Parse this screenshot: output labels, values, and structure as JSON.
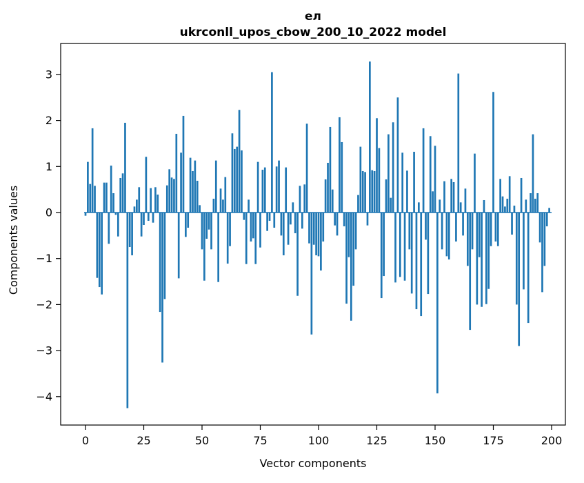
{
  "title": {
    "line1": "ел",
    "line2": "ukrconll_upos_cbow_200_10_2022 model"
  },
  "chart_data": {
    "type": "bar",
    "title": "ел",
    "subtitle": "ukrconll_upos_cbow_200_10_2022 model",
    "xlabel": "Vector components",
    "ylabel": "Components values",
    "bar_color": "#1f77b4",
    "axis_color": "#000000",
    "grid": false,
    "legend": false,
    "n_bars": 200,
    "xlim": [
      -11,
      206
    ],
    "ylim": [
      -4.6,
      3.67
    ],
    "x_tick_values": [
      0,
      25,
      50,
      75,
      100,
      125,
      150,
      175,
      200
    ],
    "x_tick_labels": [
      "0",
      "25",
      "50",
      "75",
      "100",
      "125",
      "150",
      "175",
      "200"
    ],
    "y_tick_values": [
      3,
      2,
      1,
      0,
      -1,
      -2,
      -3,
      -4
    ],
    "y_tick_labels": [
      "3",
      "2",
      "1",
      "0",
      "−1",
      "−2",
      "−3",
      "−4"
    ],
    "values": [
      -0.07,
      1.1,
      0.62,
      1.83,
      0.58,
      -1.42,
      -1.62,
      -1.78,
      0.65,
      0.65,
      -0.68,
      1.02,
      0.42,
      -0.05,
      -0.52,
      0.75,
      0.85,
      1.95,
      -4.25,
      -0.75,
      -0.93,
      0.13,
      0.28,
      0.55,
      -0.52,
      -0.27,
      1.21,
      -0.18,
      0.53,
      -0.22,
      0.55,
      0.39,
      -2.16,
      -3.26,
      -1.88,
      0.59,
      0.94,
      0.76,
      0.73,
      1.71,
      -1.43,
      1.3,
      2.1,
      -0.53,
      -0.33,
      1.19,
      0.9,
      1.13,
      0.69,
      0.16,
      -0.8,
      -1.48,
      -0.57,
      -0.37,
      -0.8,
      0.3,
      1.13,
      -1.51,
      0.52,
      0.28,
      0.77,
      -1.11,
      -0.73,
      1.72,
      1.38,
      1.43,
      2.23,
      1.35,
      -0.16,
      -1.12,
      0.28,
      -0.63,
      -0.56,
      -1.12,
      1.1,
      -0.76,
      0.93,
      0.98,
      -0.4,
      -0.18,
      3.05,
      -0.33,
      1.0,
      1.13,
      -0.5,
      -0.93,
      0.98,
      -0.7,
      -0.26,
      0.22,
      -0.45,
      -1.81,
      0.58,
      -0.35,
      0.61,
      1.93,
      -0.67,
      -2.65,
      -0.7,
      -0.93,
      -0.95,
      -1.26,
      -0.63,
      0.72,
      1.08,
      1.86,
      0.5,
      -0.28,
      -0.5,
      2.07,
      1.53,
      -0.3,
      -1.98,
      -0.97,
      -2.35,
      -1.59,
      -0.8,
      0.38,
      1.43,
      0.9,
      0.88,
      -0.28,
      3.28,
      0.92,
      0.9,
      2.05,
      1.4,
      -1.86,
      -1.38,
      0.72,
      1.7,
      0.32,
      1.96,
      -1.52,
      2.5,
      -1.4,
      1.3,
      -1.48,
      0.91,
      -0.8,
      -1.76,
      1.32,
      -2.1,
      0.22,
      -2.25,
      1.83,
      -0.59,
      -1.77,
      1.66,
      0.46,
      1.45,
      -3.93,
      0.28,
      -0.8,
      0.68,
      -0.95,
      -1.02,
      0.73,
      0.66,
      -0.63,
      3.02,
      0.22,
      -0.5,
      0.52,
      -1.16,
      -2.55,
      -0.8,
      1.28,
      -2.0,
      -0.97,
      -2.05,
      0.27,
      -1.99,
      -1.66,
      -0.73,
      2.62,
      -0.63,
      -0.73,
      0.73,
      0.35,
      0.13,
      0.3,
      0.79,
      -0.48,
      0.15,
      -2.0,
      -2.9,
      0.75,
      -1.67,
      0.28,
      -2.4,
      0.42,
      1.7,
      0.3,
      0.42,
      -0.65,
      -1.73,
      -1.16,
      -0.3,
      0.1
    ]
  }
}
